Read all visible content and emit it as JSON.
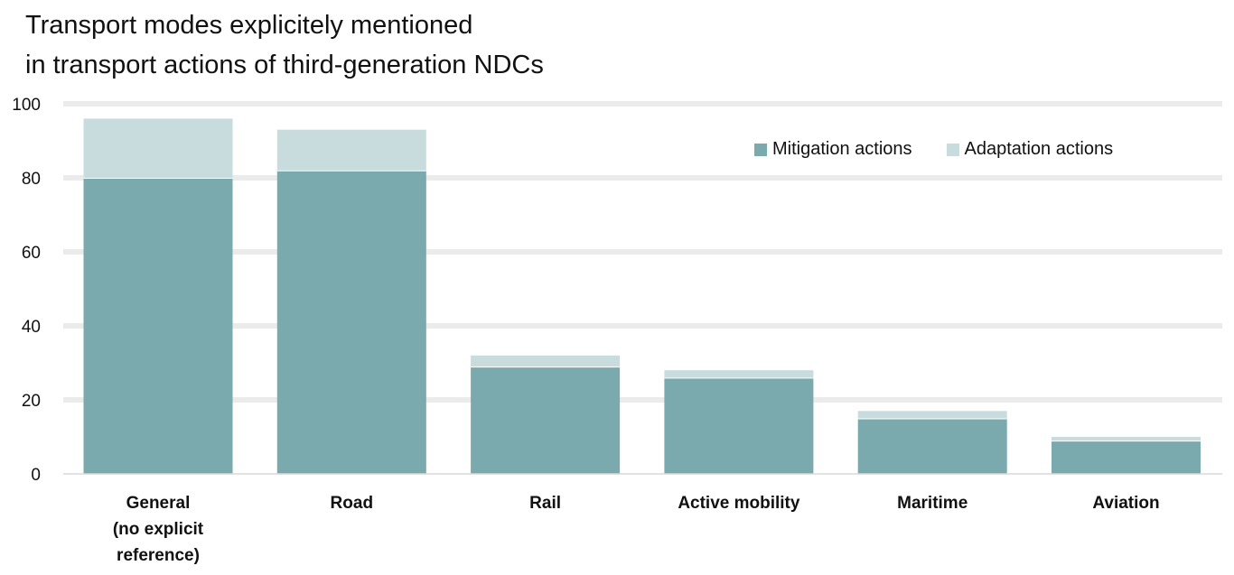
{
  "chart_data": {
    "type": "bar",
    "stacked": true,
    "title_lines": [
      "Transport modes explicitely mentioned",
      "in transport actions of third-generation NDCs"
    ],
    "categories": [
      [
        "General",
        "(no explicit",
        "reference)"
      ],
      [
        "Road"
      ],
      [
        "Rail"
      ],
      [
        "Active mobility"
      ],
      [
        "Maritime"
      ],
      [
        "Aviation"
      ]
    ],
    "series": [
      {
        "name": "Mitigation actions",
        "color": "#7aaaad",
        "values": [
          80,
          82,
          29,
          26,
          15,
          9
        ]
      },
      {
        "name": "Adaptation actions",
        "color": "#c8dcde",
        "values": [
          16,
          11,
          3,
          2,
          2,
          1
        ]
      }
    ],
    "ylim": [
      0,
      100
    ],
    "yticks": [
      "0",
      "20",
      "40",
      "60",
      "80",
      "100"
    ],
    "ytick_values": [
      0,
      20,
      40,
      60,
      80,
      100
    ],
    "grid": true,
    "grid_color": "#ebebeb",
    "legend_position": "top-right"
  }
}
